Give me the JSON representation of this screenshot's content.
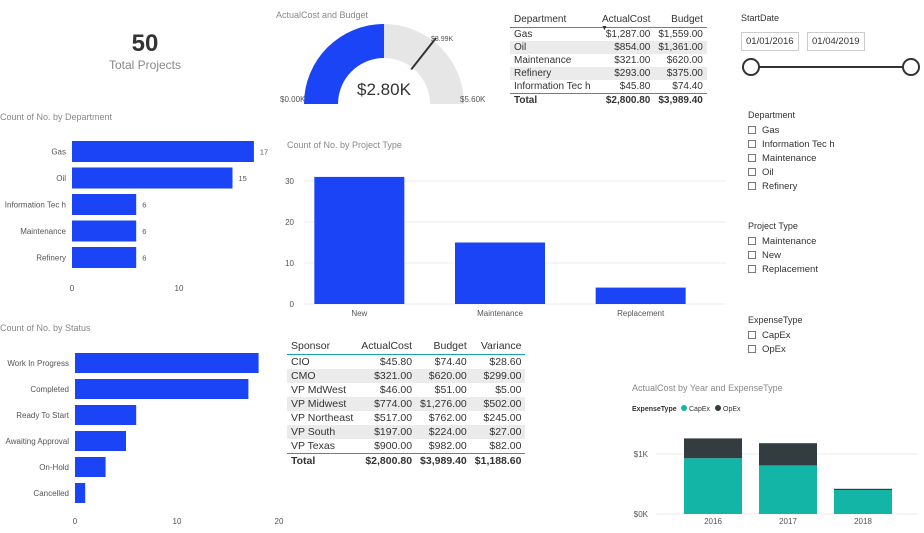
{
  "card": {
    "value": "50",
    "label": "Total Projects"
  },
  "gauge": {
    "title": "ActualCost and Budget",
    "value_text": "$2.80K",
    "min_label": "$0.00K",
    "max_label": "$5.60K",
    "target_label": "$3.99K",
    "value": 2800.8,
    "target": 3989.4,
    "min": 0,
    "max": 5600,
    "colors": {
      "fill": "#1a44f5",
      "track": "#e6e6e6",
      "target": "#333333"
    }
  },
  "dept_table": {
    "headers": [
      "Department",
      "ActualCost",
      "Budget"
    ],
    "rows": [
      [
        "Gas",
        "$1,287.00",
        "$1,559.00"
      ],
      [
        "Oil",
        "$854.00",
        "$1,361.00"
      ],
      [
        "Maintenance",
        "$321.00",
        "$620.00"
      ],
      [
        "Refinery",
        "$293.00",
        "$375.00"
      ],
      [
        "Information Tec h",
        "$45.80",
        "$74.40"
      ]
    ],
    "total": [
      "Total",
      "$2,800.80",
      "$3,989.40"
    ]
  },
  "date_slicer": {
    "title": "StartDate",
    "start": "01/01/2016",
    "end": "01/04/2019"
  },
  "slicers": [
    {
      "title": "Department",
      "items": [
        "Gas",
        "Information Tec h",
        "Maintenance",
        "Oil",
        "Refinery"
      ]
    },
    {
      "title": "Project Type",
      "items": [
        "Maintenance",
        "New",
        "Replacement"
      ]
    },
    {
      "title": "ExpenseType",
      "items": [
        "CapEx",
        "OpEx"
      ]
    }
  ],
  "sponsor_table": {
    "headers": [
      "Sponsor",
      "ActualCost",
      "Budget",
      "Variance"
    ],
    "rows": [
      [
        "CIO",
        "$45.80",
        "$74.40",
        "$28.60"
      ],
      [
        "CMO",
        "$321.00",
        "$620.00",
        "$299.00"
      ],
      [
        "VP MdWest",
        "$46.00",
        "$51.00",
        "$5.00"
      ],
      [
        "VP Midwest",
        "$774.00",
        "$1,276.00",
        "$502.00"
      ],
      [
        "VP Northeast",
        "$517.00",
        "$762.00",
        "$245.00"
      ],
      [
        "VP South",
        "$197.00",
        "$224.00",
        "$27.00"
      ],
      [
        "VP Texas",
        "$900.00",
        "$982.00",
        "$82.00"
      ]
    ],
    "total": [
      "Total",
      "$2,800.80",
      "$3,989.40",
      "$1,188.60"
    ]
  },
  "chart_data": [
    {
      "type": "bar",
      "orientation": "horizontal",
      "title": "Count of No. by Department",
      "categories": [
        "Gas",
        "Oil",
        "Information Tec h",
        "Maintenance",
        "Refinery"
      ],
      "values": [
        17,
        15,
        6,
        6,
        6
      ],
      "data_labels": true,
      "xticks": [
        0,
        10
      ],
      "xlim": [
        0,
        20
      ],
      "color": "#1a44f5"
    },
    {
      "type": "bar",
      "title": "Count of No. by Project Type",
      "categories": [
        "New",
        "Maintenance",
        "Replacement"
      ],
      "values": [
        31,
        15,
        4
      ],
      "yticks": [
        0,
        10,
        20,
        30
      ],
      "ylim": [
        0,
        33
      ],
      "grid": true,
      "color": "#1a44f5"
    },
    {
      "type": "bar",
      "orientation": "horizontal",
      "title": "Count of No. by Status",
      "categories": [
        "Work In Progress",
        "Completed",
        "Ready To Start",
        "Awaiting Approval",
        "On-Hold",
        "Cancelled"
      ],
      "values": [
        18,
        17,
        6,
        5,
        3,
        1
      ],
      "xticks": [
        0,
        10,
        20
      ],
      "xlim": [
        0,
        20
      ],
      "color": "#1a44f5"
    },
    {
      "type": "bar",
      "stacked": true,
      "title": "ActualCost by Year and ExpenseType",
      "legend_title": "ExpenseType",
      "legend_position": "top-left",
      "categories": [
        "2016",
        "2017",
        "2018"
      ],
      "series": [
        {
          "name": "CapEx",
          "values": [
            930,
            810,
            400
          ],
          "color": "#12b5a6"
        },
        {
          "name": "OpEx",
          "values": [
            330,
            370,
            20
          ],
          "color": "#333d40"
        }
      ],
      "yticks": [
        "$0K",
        "$1K"
      ],
      "ylim": [
        0,
        1400
      ],
      "grid": true
    }
  ]
}
